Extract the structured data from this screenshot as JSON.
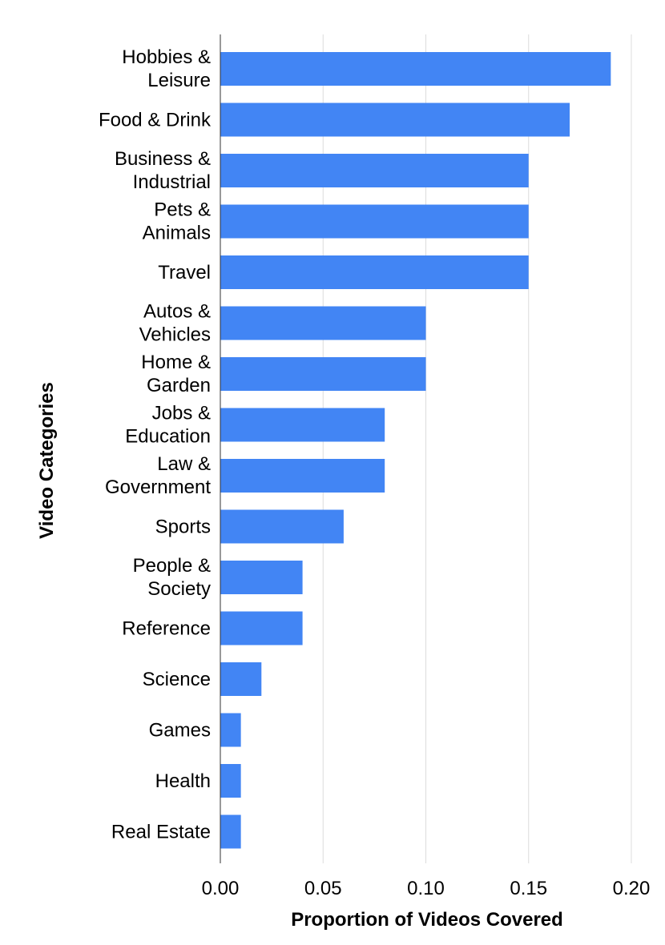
{
  "chart_data": {
    "type": "bar",
    "orientation": "horizontal",
    "categories": [
      [
        "Hobbies &",
        "Leisure"
      ],
      [
        "Food & Drink"
      ],
      [
        "Business &",
        "Industrial"
      ],
      [
        "Pets &",
        "Animals"
      ],
      [
        "Travel"
      ],
      [
        "Autos &",
        "Vehicles"
      ],
      [
        "Home &",
        "Garden"
      ],
      [
        "Jobs &",
        "Education"
      ],
      [
        "Law &",
        "Government"
      ],
      [
        "Sports"
      ],
      [
        "People &",
        "Society"
      ],
      [
        "Reference"
      ],
      [
        "Science"
      ],
      [
        "Games"
      ],
      [
        "Health"
      ],
      [
        "Real Estate"
      ]
    ],
    "values": [
      0.19,
      0.17,
      0.15,
      0.15,
      0.15,
      0.1,
      0.1,
      0.08,
      0.08,
      0.06,
      0.04,
      0.04,
      0.02,
      0.01,
      0.01,
      0.01
    ],
    "xlabel": "Proportion of Videos Covered",
    "ylabel": "Video Categories",
    "xlim": [
      0,
      0.2
    ],
    "xticks": [
      0,
      0.05,
      0.1,
      0.15,
      0.2
    ],
    "xtick_labels": [
      "0.00",
      "0.05",
      "0.10",
      "0.15",
      "0.20"
    ],
    "grid": "vertical",
    "bar_color": "#4285f4",
    "grid_color": "#dcdcdc",
    "axis_color": "#333333"
  }
}
